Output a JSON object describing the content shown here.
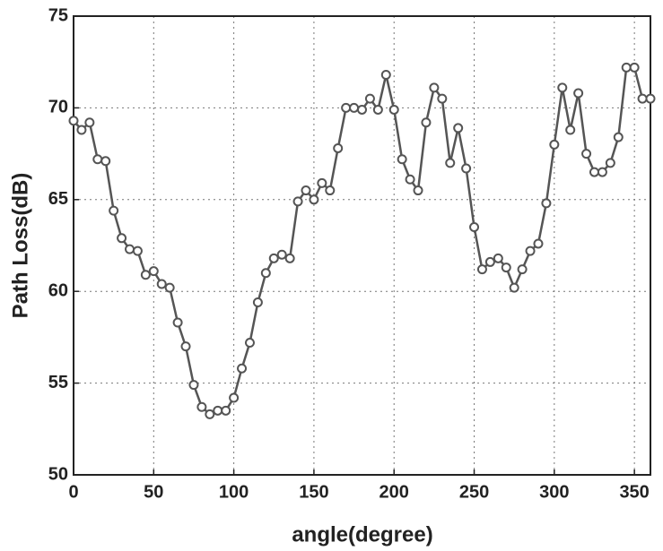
{
  "chart_data": {
    "type": "line",
    "xlabel": "angle(degree)",
    "ylabel": "Path Loss(dB)",
    "x": [
      0,
      5,
      10,
      15,
      20,
      25,
      30,
      35,
      40,
      45,
      50,
      55,
      60,
      65,
      70,
      75,
      80,
      85,
      90,
      95,
      100,
      105,
      110,
      115,
      120,
      125,
      130,
      135,
      140,
      145,
      150,
      155,
      160,
      165,
      170,
      175,
      180,
      185,
      190,
      195,
      200,
      205,
      210,
      215,
      220,
      225,
      230,
      235,
      240,
      245,
      250,
      255,
      260,
      265,
      270,
      275,
      280,
      285,
      290,
      295,
      300,
      305,
      310,
      315,
      320,
      325,
      330,
      335,
      340,
      345,
      350,
      355,
      360
    ],
    "values": [
      69.3,
      68.8,
      69.2,
      67.2,
      67.1,
      64.4,
      62.9,
      62.3,
      62.2,
      60.9,
      61.1,
      60.4,
      60.2,
      58.3,
      57.0,
      54.9,
      53.7,
      53.3,
      53.5,
      53.5,
      54.2,
      55.8,
      57.2,
      59.4,
      61.0,
      61.8,
      62.0,
      61.8,
      64.9,
      65.5,
      65.0,
      65.9,
      65.5,
      67.8,
      70.0,
      70.0,
      69.9,
      70.5,
      69.9,
      71.8,
      69.9,
      67.2,
      66.1,
      65.5,
      69.2,
      71.1,
      70.5,
      67.0,
      68.9,
      66.7,
      63.5,
      61.2,
      61.6,
      61.8,
      61.3,
      60.2,
      61.2,
      62.2,
      62.6,
      64.8,
      68.0,
      71.1,
      68.8,
      70.8,
      67.5,
      66.5,
      66.5,
      67.0,
      68.4,
      72.2,
      72.2,
      70.5,
      70.5
    ],
    "color": "#555555",
    "xlim": [
      0,
      360
    ],
    "ylim": [
      50,
      75
    ],
    "xticks": [
      0,
      50,
      100,
      150,
      200,
      250,
      300,
      350
    ],
    "yticks": [
      50,
      55,
      60,
      65,
      70,
      75
    ],
    "grid": true
  }
}
